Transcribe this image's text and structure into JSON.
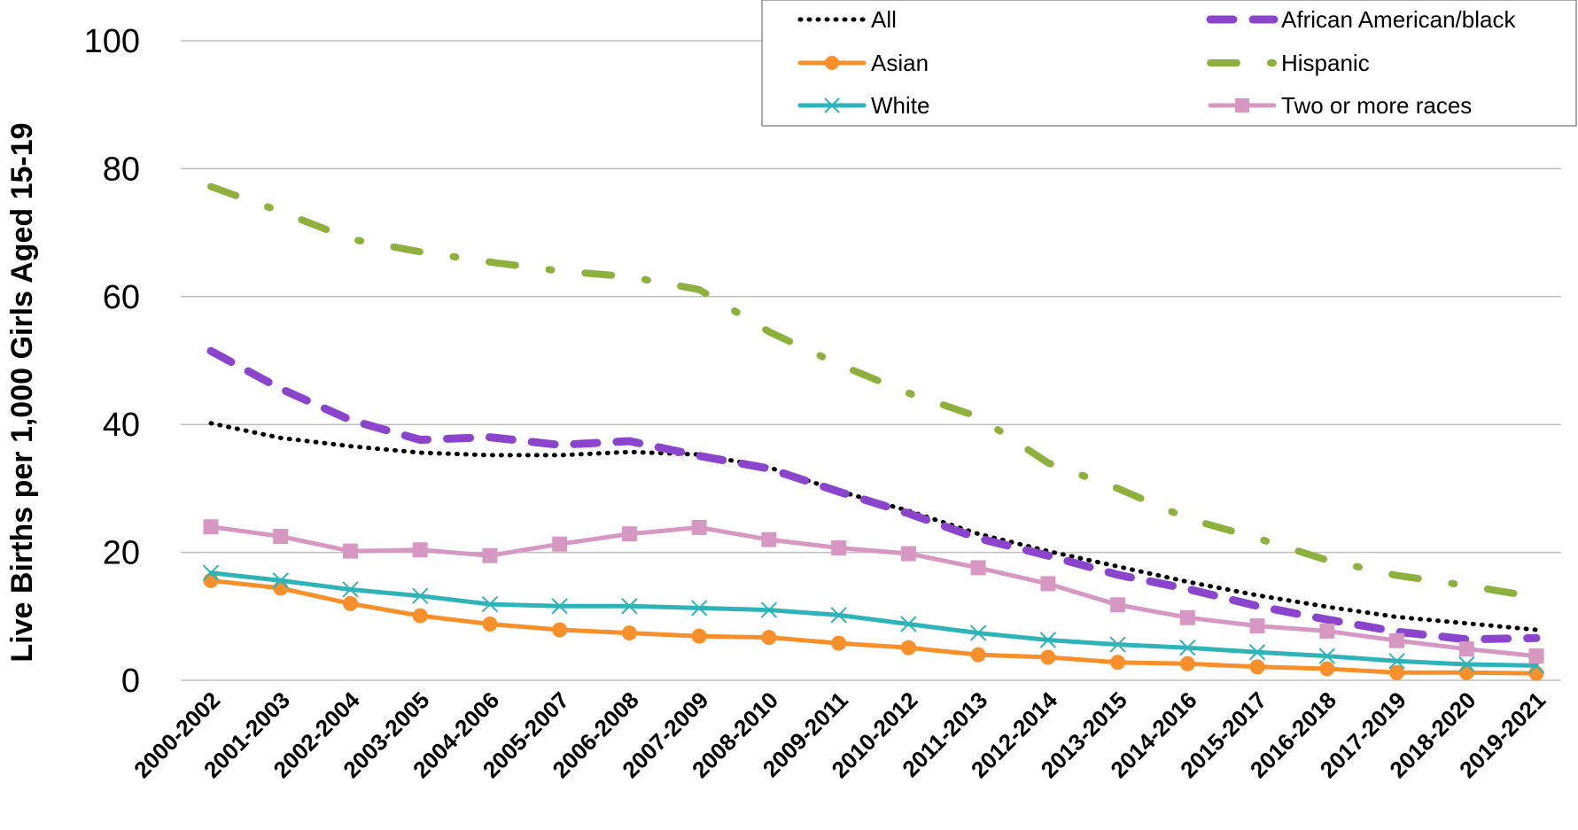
{
  "chart_data": {
    "type": "line",
    "title": "",
    "xlabel": "",
    "ylabel": "Live Births per 1,000 Girls Aged 15-19",
    "ylim": [
      0,
      100
    ],
    "yticks": [
      0,
      20,
      40,
      60,
      80,
      100
    ],
    "grid": true,
    "legend_position": "top-right",
    "categories": [
      "2000-2002",
      "2001-2003",
      "2002-2004",
      "2003-2005",
      "2004-2006",
      "2005-2007",
      "2006-2008",
      "2007-2009",
      "2008-2010",
      "2009-2011",
      "2010-2012",
      "2011-2013",
      "2012-2014",
      "2013-2015",
      "2014-2016",
      "2015-2017",
      "2016-2018",
      "2017-2019",
      "2018-2020",
      "2019-2021"
    ],
    "series": [
      {
        "name": "All",
        "color": "#000000",
        "style": "dotted",
        "marker": "none",
        "values": [
          40.2,
          37.9,
          36.6,
          35.6,
          35.2,
          35.2,
          35.7,
          35.3,
          33.3,
          29.6,
          26.5,
          22.9,
          20.2,
          17.8,
          15.4,
          13.3,
          11.5,
          9.9,
          8.9,
          7.9
        ]
      },
      {
        "name": "African American/black",
        "color": "#8B44CC",
        "style": "dashed",
        "marker": "none",
        "values": [
          51.5,
          45.6,
          40.7,
          37.6,
          38.0,
          36.8,
          37.4,
          35.1,
          33.1,
          29.5,
          26.1,
          22.2,
          19.5,
          16.5,
          14.3,
          11.6,
          9.5,
          7.6,
          6.4,
          6.6
        ]
      },
      {
        "name": "Asian",
        "color": "#F7902A",
        "style": "solid",
        "marker": "circle",
        "values": [
          15.6,
          14.4,
          12.0,
          10.1,
          8.8,
          7.9,
          7.4,
          6.9,
          6.7,
          5.8,
          5.1,
          4.0,
          3.6,
          2.8,
          2.6,
          2.1,
          1.8,
          1.2,
          1.2,
          1.1
        ]
      },
      {
        "name": "Hispanic",
        "color": "#8DB13C",
        "style": "dashdot",
        "marker": "none",
        "values": [
          77.2,
          73.3,
          69.0,
          67.0,
          65.4,
          64.0,
          63.1,
          61.1,
          54.5,
          49.4,
          44.9,
          41.2,
          34.0,
          30.0,
          25.3,
          22.2,
          18.8,
          16.4,
          14.8,
          13.0
        ]
      },
      {
        "name": "White",
        "color": "#2EB3B8",
        "style": "solid",
        "marker": "x",
        "values": [
          16.8,
          15.6,
          14.2,
          13.2,
          11.9,
          11.6,
          11.6,
          11.3,
          11.0,
          10.2,
          8.8,
          7.4,
          6.3,
          5.6,
          5.1,
          4.4,
          3.8,
          3.0,
          2.5,
          2.3
        ]
      },
      {
        "name": "Two or more races",
        "color": "#D698C3",
        "style": "solid",
        "marker": "square",
        "values": [
          24.0,
          22.5,
          20.2,
          20.4,
          19.5,
          21.3,
          22.9,
          23.9,
          22.0,
          20.7,
          19.8,
          17.6,
          15.1,
          11.8,
          9.8,
          8.5,
          7.7,
          6.2,
          4.9,
          3.8
        ]
      }
    ]
  }
}
